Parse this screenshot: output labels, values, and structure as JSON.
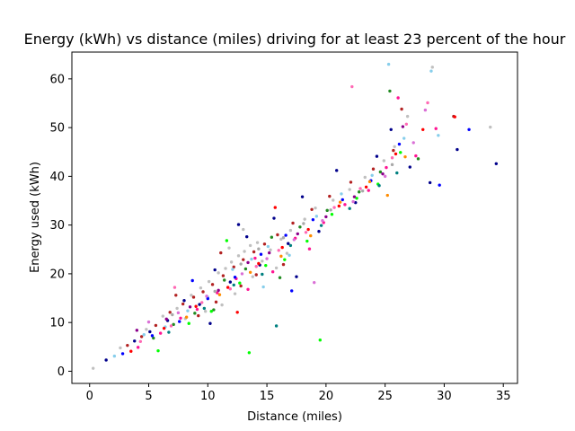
{
  "chart_data": {
    "type": "scatter",
    "title": "Energy (kWh) vs distance (miles) driving for at least 23 percent of the hour",
    "xlabel": "Distance (miles)",
    "ylabel": "Energy used (kWh)",
    "xlim": [
      -1.5,
      36.2
    ],
    "ylim": [
      -2.5,
      65.5
    ],
    "xticks": [
      0,
      5,
      10,
      15,
      20,
      25,
      30,
      35
    ],
    "yticks": [
      0,
      10,
      20,
      30,
      40,
      50,
      60
    ],
    "grid": false,
    "legend": "none",
    "marker": "small filled circle",
    "colors": [
      "#c0c0c0",
      "#b22222",
      "#00008b",
      "#ff1493",
      "#87ceeb",
      "#228b22",
      "#00ff00",
      "#ff0000",
      "#0000ff",
      "#ff69b4",
      "#ff8c00",
      "#8b008b",
      "#da70d6",
      "#008080",
      "#a9a9a9"
    ],
    "series": [
      {
        "color": "#c0c0c0",
        "points": [
          [
            0.3,
            0.6
          ],
          [
            2.6,
            4.8
          ],
          [
            4.8,
            8.6
          ],
          [
            6.2,
            11.3
          ],
          [
            7.4,
            12.9
          ],
          [
            8.6,
            15.6
          ],
          [
            9.4,
            17.1
          ],
          [
            10.1,
            18.4
          ],
          [
            10.9,
            20.2
          ],
          [
            11.5,
            21.1
          ],
          [
            12.0,
            22.4
          ],
          [
            12.6,
            23.7
          ],
          [
            13.1,
            24.6
          ],
          [
            13.6,
            25.8
          ],
          [
            14.2,
            26.4
          ],
          [
            14.6,
            22.6
          ],
          [
            15.3,
            24.9
          ],
          [
            16.2,
            27.1
          ],
          [
            17.0,
            28.9
          ],
          [
            18.2,
            31.2
          ],
          [
            19.1,
            33.5
          ],
          [
            20.6,
            35.1
          ],
          [
            22.0,
            37.3
          ],
          [
            23.3,
            39.8
          ],
          [
            24.9,
            43.2
          ],
          [
            25.8,
            46.1
          ],
          [
            26.9,
            52.3
          ],
          [
            29.0,
            62.4
          ],
          [
            33.9,
            50.1
          ],
          [
            12.3,
            15.9
          ],
          [
            13.8,
            19.4
          ],
          [
            11.2,
            13.6
          ],
          [
            15.8,
            21.2
          ],
          [
            9.8,
            12.3
          ],
          [
            8.1,
            10.8
          ],
          [
            13.0,
            29.1
          ],
          [
            11.8,
            25.3
          ],
          [
            16.7,
            24.2
          ]
        ]
      },
      {
        "color": "#b22222",
        "points": [
          [
            3.2,
            5.3
          ],
          [
            4.4,
            7.1
          ],
          [
            5.6,
            9.4
          ],
          [
            6.8,
            12.1
          ],
          [
            7.9,
            13.8
          ],
          [
            8.8,
            15.2
          ],
          [
            9.6,
            16.3
          ],
          [
            10.4,
            17.8
          ],
          [
            11.3,
            19.6
          ],
          [
            12.2,
            21.4
          ],
          [
            13.0,
            22.9
          ],
          [
            13.9,
            24.5
          ],
          [
            14.8,
            26.1
          ],
          [
            15.9,
            28.0
          ],
          [
            17.2,
            30.4
          ],
          [
            18.8,
            33.2
          ],
          [
            20.3,
            35.9
          ],
          [
            22.1,
            38.8
          ],
          [
            24.0,
            41.5
          ],
          [
            25.7,
            45.3
          ],
          [
            26.4,
            53.8
          ],
          [
            30.8,
            52.3
          ],
          [
            9.2,
            11.4
          ],
          [
            10.7,
            14.2
          ],
          [
            12.8,
            17.5
          ],
          [
            14.1,
            19.8
          ],
          [
            7.3,
            15.6
          ],
          [
            11.1,
            24.3
          ],
          [
            16.4,
            21.9
          ]
        ]
      },
      {
        "color": "#00008b",
        "points": [
          [
            1.4,
            2.3
          ],
          [
            3.8,
            6.2
          ],
          [
            5.1,
            8.1
          ],
          [
            6.6,
            10.4
          ],
          [
            8.0,
            14.5
          ],
          [
            9.3,
            13.7
          ],
          [
            10.6,
            20.8
          ],
          [
            11.9,
            18.3
          ],
          [
            13.3,
            27.6
          ],
          [
            14.4,
            21.8
          ],
          [
            15.6,
            31.4
          ],
          [
            16.8,
            26.2
          ],
          [
            18.0,
            35.8
          ],
          [
            19.4,
            28.7
          ],
          [
            20.9,
            41.2
          ],
          [
            22.5,
            34.6
          ],
          [
            24.3,
            44.1
          ],
          [
            25.5,
            49.6
          ],
          [
            27.1,
            41.9
          ],
          [
            28.8,
            38.7
          ],
          [
            31.1,
            45.5
          ],
          [
            34.4,
            42.6
          ],
          [
            12.6,
            30.1
          ],
          [
            10.2,
            9.8
          ],
          [
            17.5,
            19.4
          ]
        ]
      },
      {
        "color": "#ff1493",
        "points": [
          [
            4.1,
            4.9
          ],
          [
            6.0,
            7.8
          ],
          [
            7.7,
            10.9
          ],
          [
            9.1,
            12.7
          ],
          [
            10.8,
            16.1
          ],
          [
            12.4,
            19.0
          ],
          [
            14.0,
            23.2
          ],
          [
            15.5,
            20.4
          ],
          [
            17.4,
            27.3
          ],
          [
            19.8,
            30.5
          ],
          [
            21.6,
            34.2
          ],
          [
            23.6,
            37.1
          ],
          [
            25.1,
            41.8
          ],
          [
            26.1,
            56.1
          ],
          [
            27.6,
            44.2
          ],
          [
            29.3,
            49.8
          ],
          [
            18.6,
            25.1
          ],
          [
            13.4,
            16.8
          ]
        ]
      },
      {
        "color": "#87ceeb",
        "points": [
          [
            2.1,
            3.1
          ],
          [
            4.6,
            7.5
          ],
          [
            6.4,
            9.1
          ],
          [
            8.3,
            12.4
          ],
          [
            10.0,
            15.2
          ],
          [
            12.1,
            20.9
          ],
          [
            13.7,
            23.0
          ],
          [
            15.1,
            25.6
          ],
          [
            16.9,
            23.8
          ],
          [
            19.2,
            31.8
          ],
          [
            21.3,
            36.4
          ],
          [
            23.9,
            40.2
          ],
          [
            25.3,
            63.0
          ],
          [
            26.6,
            47.8
          ],
          [
            28.9,
            61.6
          ],
          [
            29.5,
            48.4
          ],
          [
            14.7,
            17.3
          ]
        ]
      },
      {
        "color": "#228b22",
        "points": [
          [
            5.4,
            6.8
          ],
          [
            7.1,
            9.6
          ],
          [
            8.9,
            11.9
          ],
          [
            11.4,
            18.7
          ],
          [
            13.2,
            21.0
          ],
          [
            15.4,
            27.5
          ],
          [
            17.8,
            29.6
          ],
          [
            20.1,
            33.0
          ],
          [
            22.8,
            36.8
          ],
          [
            24.6,
            40.9
          ],
          [
            25.4,
            57.5
          ],
          [
            27.8,
            43.6
          ],
          [
            16.1,
            19.2
          ],
          [
            10.5,
            12.6
          ]
        ]
      },
      {
        "color": "#00ff00",
        "points": [
          [
            5.8,
            4.2
          ],
          [
            8.4,
            9.8
          ],
          [
            10.3,
            12.3
          ],
          [
            12.7,
            18.1
          ],
          [
            14.9,
            21.7
          ],
          [
            16.5,
            22.9
          ],
          [
            18.4,
            26.7
          ],
          [
            20.5,
            32.2
          ],
          [
            22.6,
            35.5
          ],
          [
            24.4,
            38.4
          ],
          [
            26.3,
            44.9
          ],
          [
            19.5,
            6.4
          ],
          [
            13.5,
            3.8
          ],
          [
            11.6,
            26.8
          ]
        ]
      },
      {
        "color": "#ff0000",
        "points": [
          [
            3.5,
            4.1
          ],
          [
            6.3,
            8.8
          ],
          [
            9.0,
            13.3
          ],
          [
            11.7,
            17.2
          ],
          [
            14.3,
            22.1
          ],
          [
            16.3,
            25.4
          ],
          [
            18.5,
            29.1
          ],
          [
            21.1,
            33.9
          ],
          [
            23.4,
            37.8
          ],
          [
            25.9,
            44.6
          ],
          [
            28.2,
            49.6
          ],
          [
            30.9,
            52.2
          ],
          [
            15.7,
            33.6
          ],
          [
            12.5,
            12.1
          ]
        ]
      },
      {
        "color": "#0000ff",
        "points": [
          [
            2.8,
            3.6
          ],
          [
            5.3,
            7.3
          ],
          [
            7.6,
            10.2
          ],
          [
            10.0,
            14.9
          ],
          [
            12.3,
            19.3
          ],
          [
            14.5,
            24.0
          ],
          [
            16.6,
            27.9
          ],
          [
            18.9,
            31.1
          ],
          [
            21.4,
            35.2
          ],
          [
            23.8,
            39.1
          ],
          [
            26.2,
            46.6
          ],
          [
            29.6,
            38.2
          ],
          [
            32.1,
            49.6
          ],
          [
            17.1,
            16.5
          ],
          [
            8.7,
            18.6
          ]
        ]
      },
      {
        "color": "#ff69b4",
        "points": [
          [
            4.3,
            6.1
          ],
          [
            6.9,
            9.3
          ],
          [
            9.5,
            14.1
          ],
          [
            11.9,
            16.9
          ],
          [
            14.1,
            21.5
          ],
          [
            16.0,
            24.8
          ],
          [
            18.3,
            28.5
          ],
          [
            20.7,
            33.6
          ],
          [
            22.9,
            37.5
          ],
          [
            25.6,
            43.8
          ],
          [
            26.8,
            50.7
          ],
          [
            28.6,
            55.1
          ],
          [
            22.2,
            58.4
          ],
          [
            7.2,
            17.2
          ]
        ]
      },
      {
        "color": "#ff8c00",
        "points": [
          [
            8.2,
            11.1
          ],
          [
            11.0,
            15.7
          ],
          [
            13.6,
            20.3
          ],
          [
            16.2,
            23.6
          ],
          [
            18.7,
            27.8
          ],
          [
            21.2,
            34.7
          ],
          [
            23.7,
            38.9
          ],
          [
            25.2,
            36.1
          ],
          [
            26.7,
            44.0
          ]
        ]
      },
      {
        "color": "#8b008b",
        "points": [
          [
            4.0,
            8.4
          ],
          [
            6.5,
            10.7
          ],
          [
            8.5,
            13.2
          ],
          [
            10.9,
            16.6
          ],
          [
            13.4,
            22.3
          ],
          [
            15.2,
            24.3
          ],
          [
            17.6,
            28.2
          ],
          [
            20.0,
            31.7
          ],
          [
            22.4,
            35.8
          ],
          [
            24.8,
            40.5
          ],
          [
            26.5,
            50.2
          ]
        ]
      },
      {
        "color": "#da70d6",
        "points": [
          [
            5.0,
            10.1
          ],
          [
            7.5,
            12.0
          ],
          [
            9.9,
            15.4
          ],
          [
            12.9,
            20.0
          ],
          [
            15.0,
            23.1
          ],
          [
            17.3,
            27.0
          ],
          [
            19.7,
            30.9
          ],
          [
            22.3,
            34.8
          ],
          [
            25.0,
            40.0
          ],
          [
            27.4,
            46.9
          ],
          [
            28.4,
            53.6
          ],
          [
            19.0,
            18.2
          ]
        ]
      },
      {
        "color": "#008080",
        "points": [
          [
            6.7,
            8.0
          ],
          [
            9.7,
            12.9
          ],
          [
            12.2,
            17.7
          ],
          [
            14.6,
            19.9
          ],
          [
            17.0,
            25.8
          ],
          [
            19.6,
            29.9
          ],
          [
            22.0,
            33.4
          ],
          [
            24.5,
            38.1
          ],
          [
            26.0,
            40.7
          ],
          [
            15.8,
            9.3
          ]
        ]
      },
      {
        "color": "#a9a9a9",
        "points": [
          [
            7.0,
            11.6
          ],
          [
            10.6,
            16.4
          ],
          [
            12.8,
            22.0
          ],
          [
            14.3,
            25.1
          ],
          [
            16.4,
            27.4
          ],
          [
            18.1,
            30.3
          ],
          [
            20.4,
            33.1
          ],
          [
            23.1,
            37.0
          ],
          [
            25.6,
            42.4
          ]
        ]
      }
    ]
  }
}
